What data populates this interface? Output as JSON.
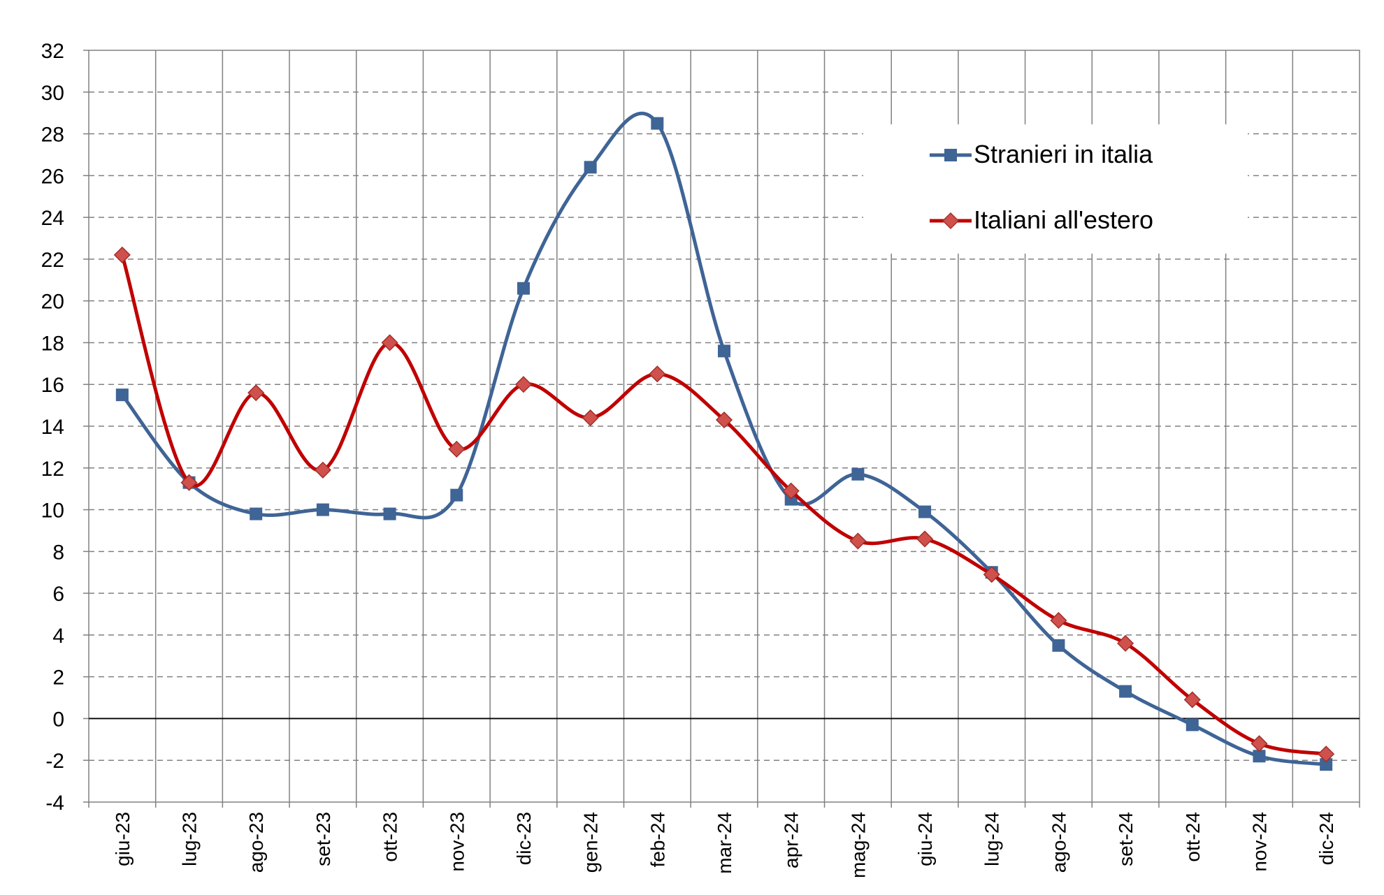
{
  "chart_data": {
    "type": "line",
    "title": "",
    "xlabel": "",
    "ylabel": "",
    "categories": [
      "giu-23",
      "lug-23",
      "ago-23",
      "set-23",
      "ott-23",
      "nov-23",
      "dic-23",
      "gen-24",
      "feb-24",
      "mar-24",
      "apr-24",
      "mag-24",
      "giu-24",
      "lug-24",
      "ago-24",
      "set-24",
      "ott-24",
      "nov-24",
      "dic-24"
    ],
    "ylim": [
      -4,
      32
    ],
    "yticks": [
      -4,
      -2,
      0,
      2,
      4,
      6,
      8,
      10,
      12,
      14,
      16,
      18,
      20,
      22,
      24,
      26,
      28,
      30,
      32
    ],
    "ytick_labels": [
      "-4",
      "-2",
      "0",
      "2",
      "4",
      "6",
      "8",
      "10",
      "12",
      "14",
      "16",
      "18",
      "20",
      "22",
      "24",
      "26",
      "28",
      "30",
      "32"
    ],
    "grid": true,
    "legend_position": "top-right",
    "series": [
      {
        "name": "Stranieri in italia",
        "color": "#3F6496",
        "marker": "square",
        "values": [
          15.5,
          11.3,
          9.8,
          10.0,
          9.8,
          10.7,
          20.6,
          26.4,
          28.5,
          17.6,
          10.5,
          11.7,
          9.9,
          7.0,
          3.5,
          1.3,
          -0.3,
          -1.8,
          -2.2
        ]
      },
      {
        "name": "Italiani all'estero",
        "color": "#C00000",
        "marker_color": "#D0504C",
        "marker": "diamond",
        "values": [
          22.2,
          11.3,
          15.6,
          11.9,
          18.0,
          12.9,
          16.0,
          14.4,
          16.5,
          14.3,
          10.9,
          8.5,
          8.6,
          6.9,
          4.7,
          3.6,
          0.9,
          -1.2,
          -1.7
        ]
      }
    ]
  }
}
